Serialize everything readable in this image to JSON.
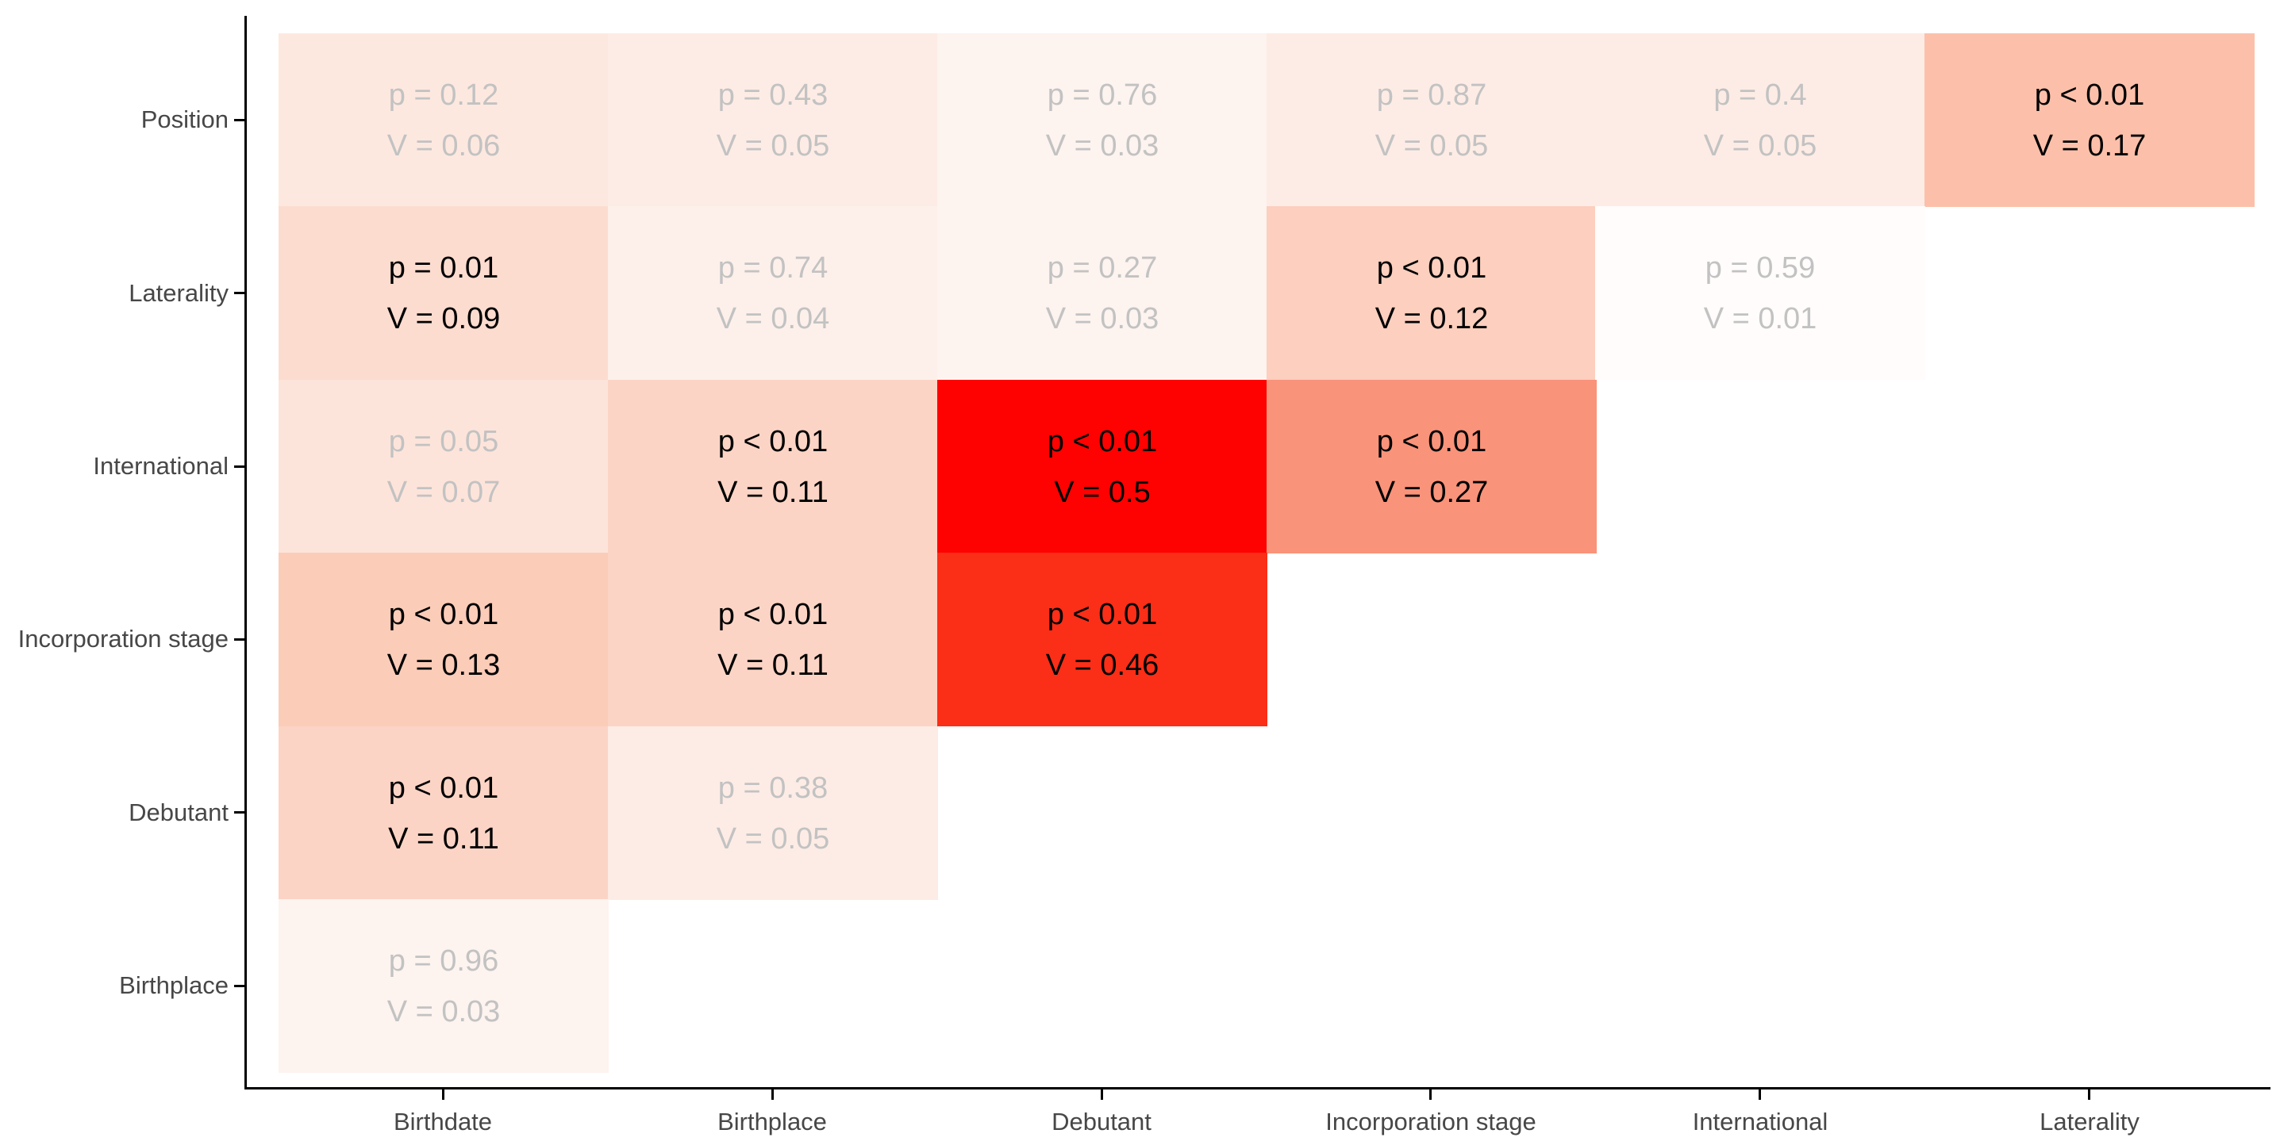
{
  "chart_data": {
    "type": "heatmap",
    "title": "",
    "x_axis_label": "",
    "y_axis_label": "",
    "x_categories": [
      "Birthdate",
      "Birthplace",
      "Debutant",
      "Incorporation stage",
      "International",
      "Laterality"
    ],
    "y_categories": [
      "Position",
      "Laterality",
      "International",
      "Incorporation stage",
      "Debutant",
      "Birthplace"
    ],
    "grid": false,
    "legend_position": "none",
    "fill_encoding": {
      "variable": "Cramer's V",
      "low": "#ffffff",
      "high": "#ff0000",
      "domain": [
        0,
        0.5
      ]
    },
    "cell_value_fields": [
      "p",
      "V"
    ],
    "cells": [
      {
        "row": "Position",
        "col": "Birthdate",
        "p_label": "p = 0.12",
        "v_label": "V = 0.06",
        "p": "0.12",
        "V": 0.06,
        "significant": false,
        "fill": "#fde8e0"
      },
      {
        "row": "Position",
        "col": "Birthplace",
        "p_label": "p = 0.43",
        "v_label": "V = 0.05",
        "p": "0.43",
        "V": 0.05,
        "significant": false,
        "fill": "#fdece5"
      },
      {
        "row": "Position",
        "col": "Debutant",
        "p_label": "p = 0.76",
        "v_label": "V = 0.03",
        "p": "0.76",
        "V": 0.03,
        "significant": false,
        "fill": "#fdf3ef"
      },
      {
        "row": "Position",
        "col": "Incorporation stage",
        "p_label": "p = 0.87",
        "v_label": "V = 0.05",
        "p": "0.87",
        "V": 0.05,
        "significant": false,
        "fill": "#fdece5"
      },
      {
        "row": "Position",
        "col": "International",
        "p_label": "p = 0.4",
        "v_label": "V = 0.05",
        "p": "0.4",
        "V": 0.05,
        "significant": false,
        "fill": "#fdece5"
      },
      {
        "row": "Position",
        "col": "Laterality",
        "p_label": "p < 0.01",
        "v_label": "V = 0.17",
        "p": "<0.01",
        "V": 0.17,
        "significant": true,
        "fill": "#fcc0aa"
      },
      {
        "row": "Laterality",
        "col": "Birthdate",
        "p_label": "p = 0.01",
        "v_label": "V = 0.09",
        "p": "0.01",
        "V": 0.09,
        "significant": true,
        "fill": "#fcdccf"
      },
      {
        "row": "Laterality",
        "col": "Birthplace",
        "p_label": "p = 0.74",
        "v_label": "V = 0.04",
        "p": "0.74",
        "V": 0.04,
        "significant": false,
        "fill": "#fdf0ea"
      },
      {
        "row": "Laterality",
        "col": "Debutant",
        "p_label": "p = 0.27",
        "v_label": "V = 0.03",
        "p": "0.27",
        "V": 0.03,
        "significant": false,
        "fill": "#fdf3ef"
      },
      {
        "row": "Laterality",
        "col": "Incorporation stage",
        "p_label": "p < 0.01",
        "v_label": "V = 0.12",
        "p": "<0.01",
        "V": 0.12,
        "significant": true,
        "fill": "#fccfbe"
      },
      {
        "row": "Laterality",
        "col": "International",
        "p_label": "p = 0.59",
        "v_label": "V = 0.01",
        "p": "0.59",
        "V": 0.01,
        "significant": false,
        "fill": "#fffcfb"
      },
      {
        "row": "International",
        "col": "Birthdate",
        "p_label": "p = 0.05",
        "v_label": "V = 0.07",
        "p": "0.05",
        "V": 0.07,
        "significant": false,
        "fill": "#fde4da"
      },
      {
        "row": "International",
        "col": "Birthplace",
        "p_label": "p < 0.01",
        "v_label": "V = 0.11",
        "p": "<0.01",
        "V": 0.11,
        "significant": true,
        "fill": "#fcd4c5"
      },
      {
        "row": "International",
        "col": "Debutant",
        "p_label": "p < 0.01",
        "v_label": "V = 0.5",
        "p": "<0.01",
        "V": 0.5,
        "significant": true,
        "fill": "#fd0200"
      },
      {
        "row": "International",
        "col": "Incorporation stage",
        "p_label": "p < 0.01",
        "v_label": "V = 0.27",
        "p": "<0.01",
        "V": 0.27,
        "significant": true,
        "fill": "#f9937a"
      },
      {
        "row": "Incorporation stage",
        "col": "Birthdate",
        "p_label": "p < 0.01",
        "v_label": "V = 0.13",
        "p": "<0.01",
        "V": 0.13,
        "significant": true,
        "fill": "#fbccb8"
      },
      {
        "row": "Incorporation stage",
        "col": "Birthplace",
        "p_label": "p < 0.01",
        "v_label": "V = 0.11",
        "p": "<0.01",
        "V": 0.11,
        "significant": true,
        "fill": "#fcd4c5"
      },
      {
        "row": "Incorporation stage",
        "col": "Debutant",
        "p_label": "p < 0.01",
        "v_label": "V = 0.46",
        "p": "<0.01",
        "V": 0.46,
        "significant": true,
        "fill": "#fb2e17"
      },
      {
        "row": "Debutant",
        "col": "Birthdate",
        "p_label": "p < 0.01",
        "v_label": "V = 0.11",
        "p": "<0.01",
        "V": 0.11,
        "significant": true,
        "fill": "#fcd4c5"
      },
      {
        "row": "Debutant",
        "col": "Birthplace",
        "p_label": "p = 0.38",
        "v_label": "V = 0.05",
        "p": "0.38",
        "V": 0.05,
        "significant": false,
        "fill": "#fdece5"
      },
      {
        "row": "Birthplace",
        "col": "Birthdate",
        "p_label": "p = 0.96",
        "v_label": "V = 0.03",
        "p": "0.96",
        "V": 0.03,
        "significant": false,
        "fill": "#fdf3ef"
      }
    ]
  },
  "styles": {
    "significant_text_color": "#000000",
    "nonsignificant_text_color": "#c2c2c2",
    "axis_text_color": "#474747",
    "axis_line_color": "#000000",
    "background_color": "#ffffff"
  }
}
